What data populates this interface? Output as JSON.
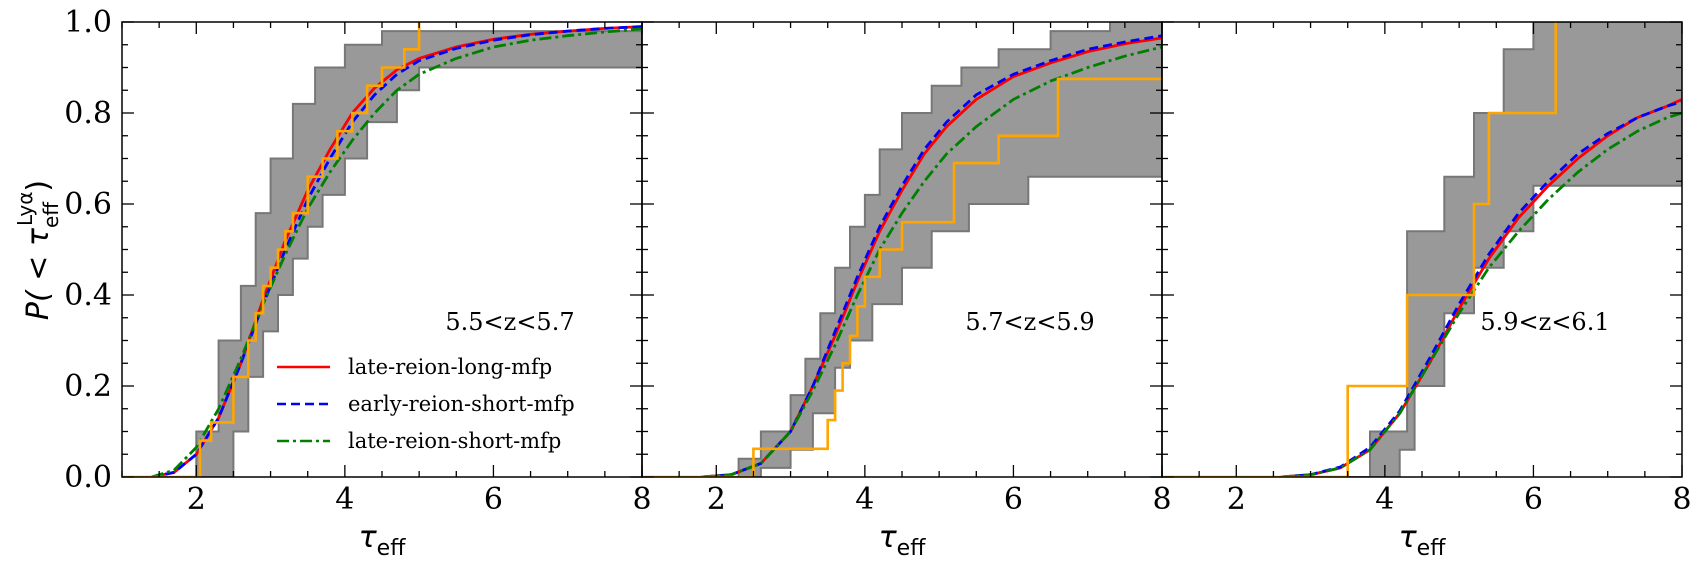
{
  "figure": {
    "ylabel": "P( < τ",
    "ylabel_sub": "eff",
    "ylabel_sup": "Lyα",
    "ylabel_end": ")"
  },
  "colors": {
    "late_reion_long_mfp": "#ff0000",
    "early_reion_short_mfp": "#0000ff",
    "late_reion_short_mfp": "#008000",
    "observed": "#ffa500",
    "observed_band": "#999999",
    "observed_band_edge": "#777777"
  },
  "legend": [
    {
      "key": "late_reion_long_mfp",
      "label": "late-reion-long-mfp",
      "dash": ""
    },
    {
      "key": "early_reion_short_mfp",
      "label": "early-reion-short-mfp",
      "dash": "9,5"
    },
    {
      "key": "late_reion_short_mfp",
      "label": "late-reion-short-mfp",
      "dash": "12,4,3,4"
    }
  ],
  "chart_data": [
    {
      "type": "line",
      "annotation": "5.5<z<5.7",
      "xlabel": "τ",
      "xlabel_sub": "eff",
      "xlim": [
        1,
        8
      ],
      "ylim": [
        0,
        1
      ],
      "xticks": [
        2,
        4,
        6,
        8
      ],
      "yticks": [
        "0.0",
        "0.2",
        "0.4",
        "0.6",
        "0.8",
        "1.0"
      ],
      "show_legend": true,
      "series": [
        {
          "name": "late-reion-long-mfp",
          "key": "late_reion_long_mfp",
          "x": [
            1.4,
            1.7,
            2.0,
            2.3,
            2.6,
            2.9,
            3.2,
            3.5,
            3.8,
            4.1,
            4.4,
            4.7,
            5.0,
            5.5,
            6.0,
            6.5,
            7.0,
            7.5,
            8.0
          ],
          "y": [
            0.0,
            0.01,
            0.05,
            0.13,
            0.25,
            0.39,
            0.52,
            0.63,
            0.72,
            0.8,
            0.855,
            0.895,
            0.92,
            0.945,
            0.962,
            0.973,
            0.98,
            0.986,
            0.99
          ]
        },
        {
          "name": "early-reion-short-mfp",
          "key": "early_reion_short_mfp",
          "x": [
            1.4,
            1.7,
            2.0,
            2.3,
            2.6,
            2.9,
            3.2,
            3.5,
            3.8,
            4.1,
            4.4,
            4.7,
            5.0,
            5.5,
            6.0,
            6.5,
            7.0,
            7.5,
            8.0
          ],
          "y": [
            0.0,
            0.01,
            0.05,
            0.13,
            0.25,
            0.38,
            0.5,
            0.61,
            0.7,
            0.78,
            0.84,
            0.885,
            0.915,
            0.942,
            0.96,
            0.972,
            0.98,
            0.986,
            0.99
          ]
        },
        {
          "name": "late-reion-short-mfp",
          "key": "late_reion_short_mfp",
          "x": [
            1.4,
            1.7,
            2.0,
            2.3,
            2.6,
            2.9,
            3.2,
            3.5,
            3.8,
            4.1,
            4.4,
            4.7,
            5.0,
            5.5,
            6.0,
            6.5,
            7.0,
            7.5,
            8.0
          ],
          "y": [
            0.0,
            0.015,
            0.065,
            0.15,
            0.26,
            0.38,
            0.49,
            0.59,
            0.67,
            0.74,
            0.8,
            0.85,
            0.885,
            0.92,
            0.945,
            0.96,
            0.97,
            0.978,
            0.985
          ]
        }
      ],
      "observed": {
        "x": [
          1.0,
          2.05,
          2.05,
          2.2,
          2.2,
          2.5,
          2.5,
          2.7,
          2.7,
          2.8,
          2.8,
          2.9,
          2.9,
          3.0,
          3.0,
          3.1,
          3.1,
          3.2,
          3.2,
          3.3,
          3.3,
          3.5,
          3.5,
          3.7,
          3.7,
          3.9,
          3.9,
          4.1,
          4.1,
          4.3,
          4.3,
          4.5,
          4.5,
          4.8,
          4.8,
          5.0,
          5.0
        ],
        "y": [
          0.0,
          0.0,
          0.08,
          0.08,
          0.12,
          0.12,
          0.22,
          0.22,
          0.3,
          0.3,
          0.36,
          0.36,
          0.42,
          0.42,
          0.46,
          0.46,
          0.5,
          0.5,
          0.54,
          0.54,
          0.58,
          0.58,
          0.66,
          0.66,
          0.7,
          0.7,
          0.76,
          0.76,
          0.8,
          0.8,
          0.86,
          0.86,
          0.9,
          0.9,
          0.94,
          0.94,
          1.0
        ]
      },
      "band_upper": {
        "x": [
          1.0,
          2.0,
          2.0,
          2.3,
          2.3,
          2.6,
          2.6,
          2.8,
          2.8,
          3.0,
          3.0,
          3.3,
          3.3,
          3.6,
          3.6,
          4.0,
          4.0,
          4.5,
          4.5,
          5.0,
          5.0,
          8.0
        ],
        "y": [
          0.0,
          0.0,
          0.1,
          0.1,
          0.3,
          0.3,
          0.42,
          0.42,
          0.58,
          0.58,
          0.7,
          0.7,
          0.82,
          0.82,
          0.9,
          0.9,
          0.95,
          0.95,
          0.98,
          0.98,
          0.98,
          0.98
        ]
      },
      "band_lower": {
        "x": [
          8.0,
          5.0,
          5.0,
          4.7,
          4.7,
          4.3,
          4.3,
          4.0,
          4.0,
          3.7,
          3.7,
          3.5,
          3.5,
          3.3,
          3.3,
          3.1,
          3.1,
          2.9,
          2.9,
          2.7,
          2.7,
          2.5,
          2.5,
          1.0
        ],
        "y": [
          0.9,
          0.9,
          0.85,
          0.85,
          0.78,
          0.78,
          0.7,
          0.7,
          0.62,
          0.62,
          0.55,
          0.55,
          0.48,
          0.48,
          0.4,
          0.4,
          0.32,
          0.32,
          0.22,
          0.22,
          0.1,
          0.1,
          0.0,
          0.0
        ]
      }
    },
    {
      "type": "line",
      "annotation": "5.7<z<5.9",
      "xlabel": "τ",
      "xlabel_sub": "eff",
      "xlim": [
        1,
        8
      ],
      "ylim": [
        0,
        1
      ],
      "xticks": [
        2,
        4,
        6,
        8
      ],
      "yticks": [],
      "show_legend": false,
      "series": [
        {
          "name": "late-reion-long-mfp",
          "key": "late_reion_long_mfp",
          "x": [
            1.8,
            2.2,
            2.6,
            3.0,
            3.3,
            3.6,
            3.9,
            4.2,
            4.5,
            4.8,
            5.1,
            5.5,
            6.0,
            6.5,
            7.0,
            7.5,
            8.0
          ],
          "y": [
            0.0,
            0.005,
            0.03,
            0.1,
            0.2,
            0.31,
            0.43,
            0.54,
            0.63,
            0.71,
            0.77,
            0.83,
            0.88,
            0.91,
            0.935,
            0.952,
            0.965
          ]
        },
        {
          "name": "early-reion-short-mfp",
          "key": "early_reion_short_mfp",
          "x": [
            1.8,
            2.2,
            2.6,
            3.0,
            3.3,
            3.6,
            3.9,
            4.2,
            4.5,
            4.8,
            5.1,
            5.5,
            6.0,
            6.5,
            7.0,
            7.5,
            8.0
          ],
          "y": [
            0.0,
            0.005,
            0.03,
            0.1,
            0.2,
            0.32,
            0.44,
            0.55,
            0.64,
            0.72,
            0.78,
            0.84,
            0.885,
            0.915,
            0.94,
            0.956,
            0.97
          ]
        },
        {
          "name": "late-reion-short-mfp",
          "key": "late_reion_short_mfp",
          "x": [
            1.8,
            2.2,
            2.6,
            3.0,
            3.3,
            3.6,
            3.9,
            4.2,
            4.5,
            4.8,
            5.1,
            5.5,
            6.0,
            6.5,
            7.0,
            7.5,
            8.0
          ],
          "y": [
            0.0,
            0.005,
            0.03,
            0.1,
            0.19,
            0.29,
            0.4,
            0.5,
            0.58,
            0.65,
            0.71,
            0.77,
            0.83,
            0.87,
            0.9,
            0.925,
            0.945
          ]
        }
      ],
      "observed": {
        "x": [
          1.0,
          2.5,
          2.5,
          3.5,
          3.5,
          3.6,
          3.6,
          3.7,
          3.7,
          3.8,
          3.8,
          3.9,
          3.9,
          4.0,
          4.0,
          4.2,
          4.2,
          4.5,
          4.5,
          5.2,
          5.2,
          5.8,
          5.8,
          6.6,
          6.6,
          8.0
        ],
        "y": [
          0.0,
          0.0,
          0.062,
          0.062,
          0.125,
          0.125,
          0.19,
          0.19,
          0.25,
          0.25,
          0.31,
          0.31,
          0.375,
          0.375,
          0.44,
          0.44,
          0.5,
          0.5,
          0.56,
          0.56,
          0.69,
          0.69,
          0.75,
          0.75,
          0.875,
          0.875
        ]
      },
      "band_upper": {
        "x": [
          1.0,
          2.3,
          2.3,
          2.6,
          2.6,
          3.0,
          3.0,
          3.2,
          3.2,
          3.4,
          3.4,
          3.6,
          3.6,
          3.8,
          3.8,
          4.0,
          4.0,
          4.2,
          4.2,
          4.5,
          4.5,
          4.9,
          4.9,
          5.3,
          5.3,
          5.8,
          5.8,
          6.5,
          6.5,
          7.3,
          7.3,
          8.0
        ],
        "y": [
          0.0,
          0.0,
          0.04,
          0.04,
          0.1,
          0.1,
          0.18,
          0.18,
          0.26,
          0.26,
          0.36,
          0.36,
          0.46,
          0.46,
          0.55,
          0.55,
          0.62,
          0.62,
          0.72,
          0.72,
          0.8,
          0.8,
          0.86,
          0.86,
          0.9,
          0.9,
          0.94,
          0.94,
          0.98,
          0.98,
          1.0,
          1.0
        ]
      },
      "band_lower": {
        "x": [
          8.0,
          6.2,
          6.2,
          5.4,
          5.4,
          4.9,
          4.9,
          4.5,
          4.5,
          4.1,
          4.1,
          3.8,
          3.8,
          3.6,
          3.6,
          3.3,
          3.3,
          3.0,
          3.0,
          2.6,
          2.6,
          1.0
        ],
        "y": [
          0.66,
          0.66,
          0.6,
          0.6,
          0.54,
          0.54,
          0.46,
          0.46,
          0.38,
          0.38,
          0.3,
          0.3,
          0.24,
          0.24,
          0.14,
          0.14,
          0.06,
          0.06,
          0.02,
          0.02,
          0.0,
          0.0
        ]
      }
    },
    {
      "type": "line",
      "annotation": "5.9<z<6.1",
      "xlabel": "τ",
      "xlabel_sub": "eff",
      "xlim": [
        1,
        8
      ],
      "ylim": [
        0,
        1
      ],
      "xticks": [
        2,
        4,
        6,
        8
      ],
      "yticks": [],
      "show_legend": false,
      "series": [
        {
          "name": "late-reion-long-mfp",
          "key": "late_reion_long_mfp",
          "x": [
            2.6,
            3.0,
            3.4,
            3.8,
            4.2,
            4.6,
            5.0,
            5.4,
            5.8,
            6.2,
            6.6,
            7.0,
            7.4,
            7.8,
            8.0
          ],
          "y": [
            0.0,
            0.005,
            0.02,
            0.06,
            0.14,
            0.25,
            0.37,
            0.48,
            0.57,
            0.64,
            0.7,
            0.75,
            0.79,
            0.815,
            0.83
          ]
        },
        {
          "name": "early-reion-short-mfp",
          "key": "early_reion_short_mfp",
          "x": [
            2.6,
            3.0,
            3.4,
            3.8,
            4.2,
            4.6,
            5.0,
            5.4,
            5.8,
            6.2,
            6.6,
            7.0,
            7.4,
            7.8,
            8.0
          ],
          "y": [
            0.0,
            0.005,
            0.022,
            0.065,
            0.145,
            0.26,
            0.38,
            0.49,
            0.58,
            0.65,
            0.71,
            0.755,
            0.79,
            0.815,
            0.825
          ]
        },
        {
          "name": "late-reion-short-mfp",
          "key": "late_reion_short_mfp",
          "x": [
            2.6,
            3.0,
            3.4,
            3.8,
            4.2,
            4.6,
            5.0,
            5.4,
            5.8,
            6.2,
            6.6,
            7.0,
            7.4,
            7.8,
            8.0
          ],
          "y": [
            0.0,
            0.005,
            0.02,
            0.06,
            0.14,
            0.25,
            0.36,
            0.46,
            0.54,
            0.61,
            0.67,
            0.72,
            0.76,
            0.79,
            0.8
          ]
        }
      ],
      "observed": {
        "x": [
          1.0,
          3.5,
          3.5,
          4.3,
          4.3,
          5.2,
          5.2,
          5.4,
          5.4,
          6.3,
          6.3
        ],
        "y": [
          0.0,
          0.0,
          0.2,
          0.2,
          0.4,
          0.4,
          0.6,
          0.6,
          0.8,
          0.8,
          1.0
        ]
      },
      "band_upper": {
        "x": [
          1.0,
          3.8,
          3.8,
          4.3,
          4.3,
          4.8,
          4.8,
          5.2,
          5.2,
          5.6,
          5.6,
          6.0,
          6.0,
          8.0
        ],
        "y": [
          0.0,
          0.0,
          0.1,
          0.1,
          0.54,
          0.54,
          0.66,
          0.66,
          0.8,
          0.8,
          0.94,
          0.94,
          1.0,
          1.0
        ]
      },
      "band_lower": {
        "x": [
          8.0,
          6.0,
          6.0,
          5.6,
          5.6,
          5.2,
          5.2,
          4.8,
          4.8,
          4.4,
          4.4,
          4.2,
          4.2,
          1.0
        ],
        "y": [
          0.64,
          0.64,
          0.54,
          0.54,
          0.46,
          0.46,
          0.36,
          0.36,
          0.2,
          0.2,
          0.06,
          0.06,
          0.0,
          0.0
        ]
      }
    }
  ]
}
